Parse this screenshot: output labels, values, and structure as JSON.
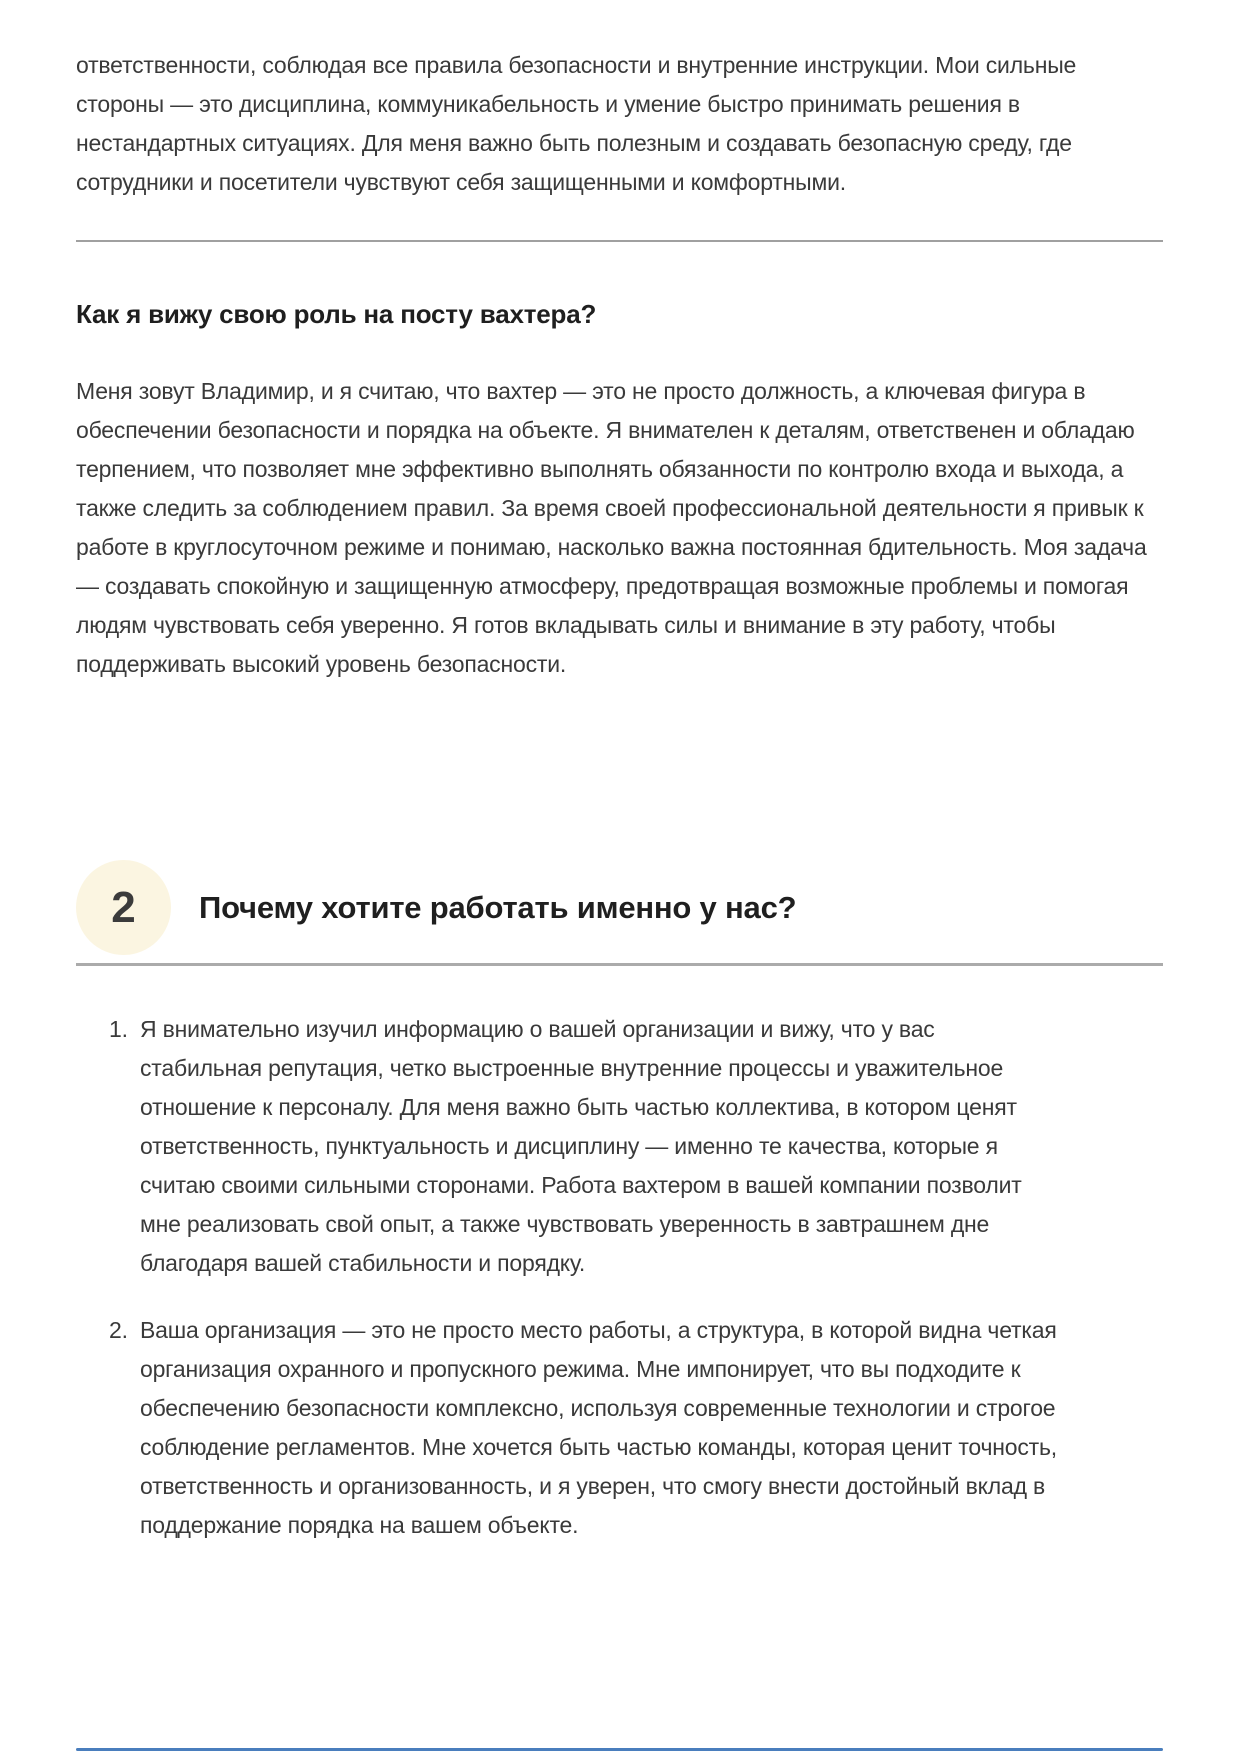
{
  "page": {
    "intro_paragraph": "ответственности, соблюдая все правила безопасности и внутренние инструкции. Мои сильные стороны — это дисциплина, коммуникабельность и умение быстро принимать решения в нестандартных ситуациях. Для меня важно быть полезным и создавать безопасную среду, где сотрудники и посетители чувствуют себя защищенными и комфортными.",
    "subsection": {
      "heading": "Как я вижу свою роль на посту вахтера?",
      "paragraph": "Меня зовут Владимир, и я считаю, что вахтер — это не просто должность, а ключевая фигура в обеспечении безопасности и порядка на объекте. Я внимателен к деталям, ответственен и обладаю терпением, что позволяет мне эффективно выполнять обязанности по контролю входа и выхода, а также следить за соблюдением правил. За время своей профессиональной деятельности я привык к работе в круглосуточном режиме и понимаю, насколько важна постоянная бдительность. Моя задача — создавать спокойную и защищенную атмосферу, предотвращая возможные проблемы и помогая людям чувствовать себя уверенно. Я готов вкладывать силы и внимание в эту работу, чтобы поддерживать высокий уровень безопасности."
    },
    "section": {
      "number": "2",
      "heading": "Почему хотите работать именно у нас?",
      "answers": [
        "Я внимательно изучил информацию о вашей организации и вижу, что у вас стабильная репутация, четко выстроенные внутренние процессы и уважительное отношение к персоналу. Для меня важно быть частью коллектива, в котором ценят ответственность, пунктуальность и дисциплину — именно те качества, которые я считаю своими сильными сторонами. Работа вахтером в вашей компании позволит мне реализовать свой опыт, а также чувствовать уверенность в завтрашнем дне благодаря вашей стабильности и порядку.",
        "Ваша организация — это не просто место работы, а структура, в которой видна четкая организация охранного и пропускного режима. Мне импонирует, что вы подходите к обеспечению безопасности комплексно, используя современные технологии и строгое соблюдение регламентов. Мне хочется быть частью команды, которая ценит точность, ответственность и организованность, и я уверен, что смогу внести достойный вклад в поддержание порядка на вашем объекте."
      ]
    },
    "colors": {
      "body_text": "#3a3a3a",
      "heading_text": "#1f1f1f",
      "divider_gray": "#ababab",
      "badge_background": "#fbf5e1",
      "badge_number": "#3b3b3b",
      "bottom_line_blue": "#4a7ebd"
    }
  }
}
